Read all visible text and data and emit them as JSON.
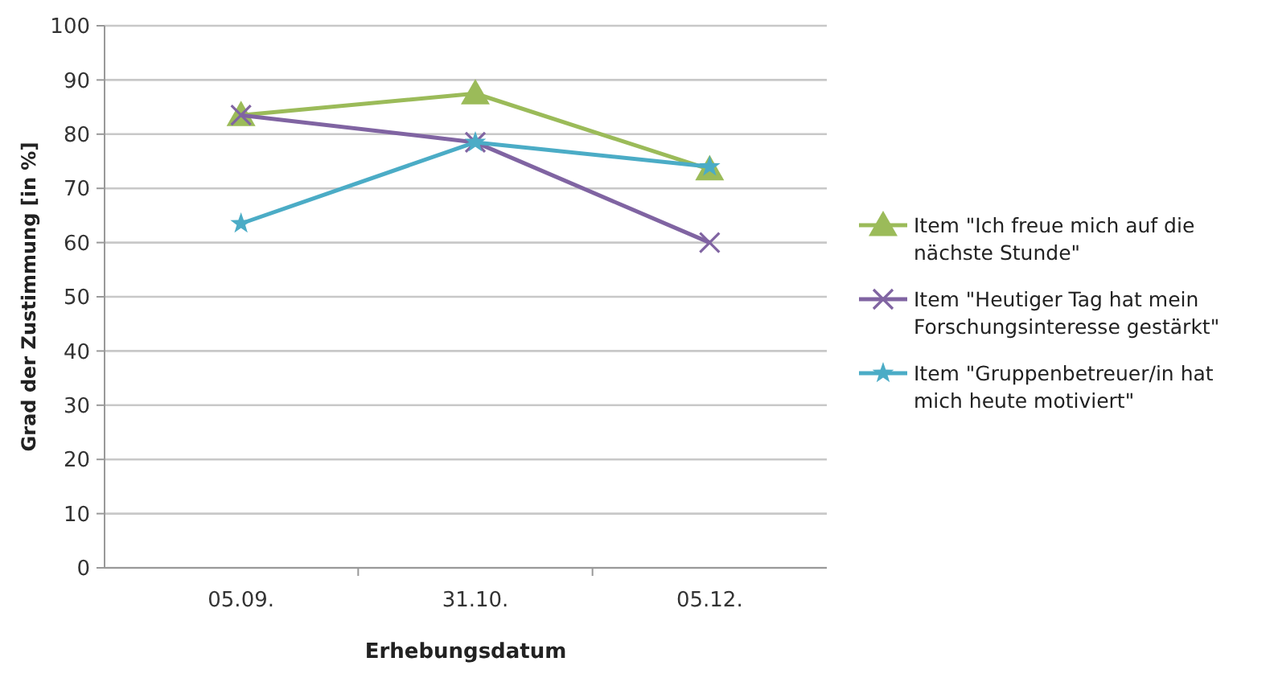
{
  "chart_data": {
    "type": "line",
    "xlabel": "Erhebungsdatum",
    "ylabel": "Grad der Zustimmung [in %]",
    "categories": [
      "05.09.",
      "31.10.",
      "05.12."
    ],
    "series": [
      {
        "name": "Item \"Ich freue mich auf die nächste Stunde\"",
        "color": "#9bbb59",
        "marker": "triangle",
        "values": [
          83.5,
          87.5,
          73.5
        ]
      },
      {
        "name": "Item \"Heutiger Tag hat mein Forschungsinteresse gestärkt\"",
        "color": "#8064a2",
        "marker": "cross",
        "values": [
          83.5,
          78.5,
          60
        ]
      },
      {
        "name": "Item \"Gruppenbetreuer/in hat mich heute motiviert\"",
        "color": "#4bacc6",
        "marker": "star",
        "values": [
          63.5,
          78.5,
          74
        ]
      }
    ],
    "ylim": [
      0,
      100
    ],
    "yticks": [
      0,
      10,
      20,
      30,
      40,
      50,
      60,
      70,
      80,
      90,
      100
    ],
    "grid": "y",
    "legend": "right",
    "line_style": "solid"
  }
}
